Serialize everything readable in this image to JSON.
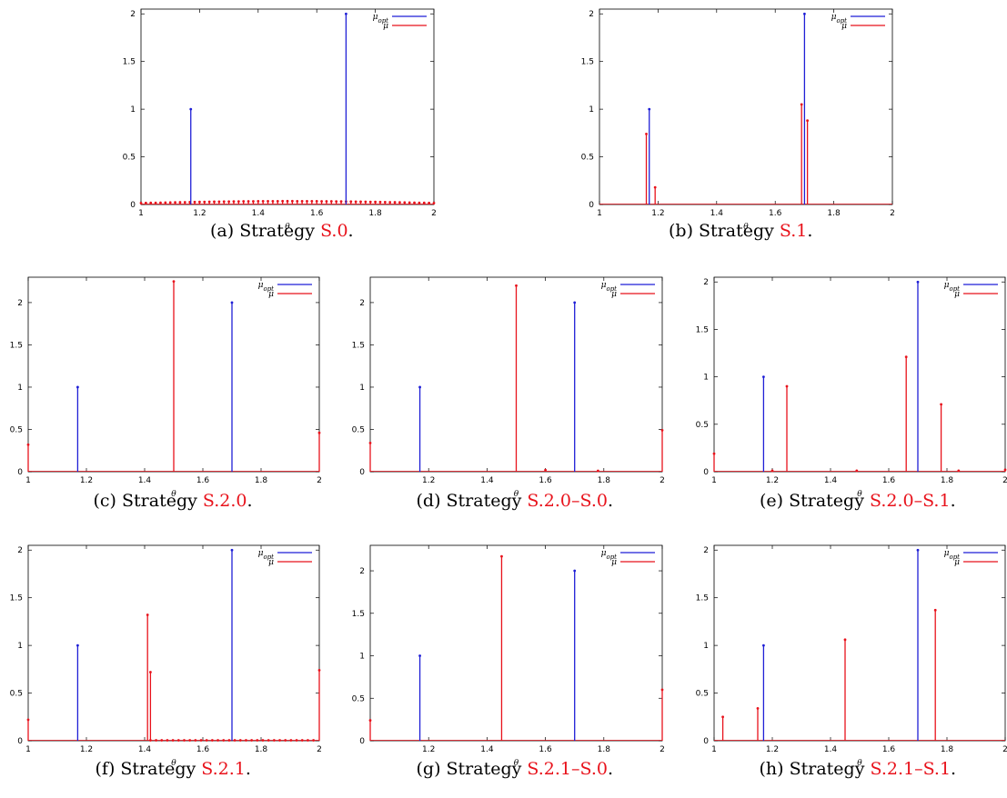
{
  "chart_data": [
    {
      "id": "a",
      "type": "stem",
      "caption_prefix": "(a) Strategy ",
      "strategy": "S.0",
      "caption_suffix": ".",
      "xlabel": "θ",
      "xlim": [
        1,
        2
      ],
      "ylim": [
        0,
        2.05
      ],
      "xticks": [
        1,
        1.2,
        1.4,
        1.6,
        1.8,
        2
      ],
      "yticks": [
        0,
        0.5,
        1,
        1.5,
        2
      ],
      "series": [
        {
          "name": "μopt",
          "name_base": "μ",
          "name_sub": "opt",
          "color": "#1f1fd6",
          "x": [
            1.17,
            1.7
          ],
          "values": [
            1.0,
            2.0
          ]
        },
        {
          "name": "μ",
          "name_base": "μ",
          "name_sub": "",
          "color": "#e8121b",
          "dense": {
            "from": 1.0,
            "to": 2.0,
            "count": 61,
            "min": 0.015,
            "max": 0.035
          },
          "x": [],
          "values": []
        }
      ]
    },
    {
      "id": "b",
      "type": "stem",
      "caption_prefix": "(b) Strategy ",
      "strategy": "S.1",
      "caption_suffix": ".",
      "xlabel": "θ",
      "xlim": [
        1,
        2
      ],
      "ylim": [
        0,
        2.05
      ],
      "xticks": [
        1,
        1.2,
        1.4,
        1.6,
        1.8,
        2
      ],
      "yticks": [
        0,
        0.5,
        1,
        1.5,
        2
      ],
      "series": [
        {
          "name": "μopt",
          "name_base": "μ",
          "name_sub": "opt",
          "color": "#1f1fd6",
          "x": [
            1.17,
            1.7
          ],
          "values": [
            1.0,
            2.0
          ]
        },
        {
          "name": "μ",
          "name_base": "μ",
          "name_sub": "",
          "color": "#e8121b",
          "x": [
            1.16,
            1.19,
            1.69,
            1.71
          ],
          "values": [
            0.74,
            0.18,
            1.05,
            0.88
          ]
        }
      ]
    },
    {
      "id": "c",
      "type": "stem",
      "caption_prefix": "(c) Strategy ",
      "strategy": "S.2.0",
      "caption_suffix": ".",
      "xlabel": "θ",
      "xlim": [
        1,
        2
      ],
      "ylim": [
        0,
        2.3
      ],
      "xticks": [
        1,
        1.2,
        1.4,
        1.6,
        1.8,
        2
      ],
      "yticks": [
        0,
        0.5,
        1,
        1.5,
        2
      ],
      "series": [
        {
          "name": "μopt",
          "name_base": "μ",
          "name_sub": "opt",
          "color": "#1f1fd6",
          "x": [
            1.17,
            1.7
          ],
          "values": [
            1.0,
            2.0
          ]
        },
        {
          "name": "μ",
          "name_base": "μ",
          "name_sub": "",
          "color": "#e8121b",
          "x": [
            1.0,
            1.5,
            2.0
          ],
          "values": [
            0.32,
            2.25,
            0.46
          ]
        }
      ]
    },
    {
      "id": "d",
      "type": "stem",
      "caption_prefix": "(d) Strategy ",
      "strategy": "S.2.0–S.0",
      "caption_suffix": ".",
      "xlabel": "θ",
      "xlim": [
        1,
        2
      ],
      "ylim": [
        0,
        2.3
      ],
      "xticks": [
        1.2,
        1.4,
        1.6,
        1.8,
        2
      ],
      "yticks": [
        0,
        0.5,
        1,
        1.5,
        2
      ],
      "series": [
        {
          "name": "μopt",
          "name_base": "μ",
          "name_sub": "opt",
          "color": "#1f1fd6",
          "x": [
            1.17,
            1.7
          ],
          "values": [
            1.0,
            2.0
          ]
        },
        {
          "name": "μ",
          "name_base": "μ",
          "name_sub": "",
          "color": "#e8121b",
          "x": [
            1.0,
            1.5,
            1.6,
            1.78,
            2.0
          ],
          "values": [
            0.34,
            2.2,
            0.02,
            0.01,
            0.49
          ]
        }
      ]
    },
    {
      "id": "e",
      "type": "stem",
      "caption_prefix": "(e) Strategy ",
      "strategy": "S.2.0–S.1",
      "caption_suffix": ".",
      "xlabel": "θ",
      "xlim": [
        1,
        2
      ],
      "ylim": [
        0,
        2.05
      ],
      "xticks": [
        1,
        1.2,
        1.4,
        1.6,
        1.8,
        2
      ],
      "yticks": [
        0,
        0.5,
        1,
        1.5,
        2
      ],
      "series": [
        {
          "name": "μopt",
          "name_base": "μ",
          "name_sub": "opt",
          "color": "#1f1fd6",
          "x": [
            1.17,
            1.7
          ],
          "values": [
            1.0,
            2.0
          ]
        },
        {
          "name": "μ",
          "name_base": "μ",
          "name_sub": "",
          "color": "#e8121b",
          "x": [
            1.0,
            1.2,
            1.25,
            1.49,
            1.66,
            1.78,
            1.84,
            2.0
          ],
          "values": [
            0.19,
            0.01,
            0.9,
            0.01,
            1.21,
            0.71,
            0.01,
            0.02
          ]
        }
      ]
    },
    {
      "id": "f",
      "type": "stem",
      "caption_prefix": "(f) Strategy ",
      "strategy": "S.2.1",
      "caption_suffix": ".",
      "xlabel": "θ",
      "xlim": [
        1,
        2
      ],
      "ylim": [
        0,
        2.05
      ],
      "xticks": [
        1,
        1.2,
        1.4,
        1.6,
        1.8,
        2
      ],
      "yticks": [
        0,
        0.5,
        1,
        1.5,
        2
      ],
      "series": [
        {
          "name": "μopt",
          "name_base": "μ",
          "name_sub": "opt",
          "color": "#1f1fd6",
          "x": [
            1.17,
            1.7
          ],
          "values": [
            1.0,
            2.0
          ]
        },
        {
          "name": "μ",
          "name_base": "μ",
          "name_sub": "",
          "color": "#e8121b",
          "dense": {
            "from": 1.42,
            "to": 1.98,
            "count": 30,
            "min": 0.005,
            "max": 0.005
          },
          "x": [
            1.0,
            1.41,
            1.42,
            2.0
          ],
          "values": [
            0.22,
            1.32,
            0.72,
            0.74
          ]
        }
      ]
    },
    {
      "id": "g",
      "type": "stem",
      "caption_prefix": "(g) Strategy ",
      "strategy": "S.2.1–S.0",
      "caption_suffix": ".",
      "xlabel": "θ",
      "xlim": [
        1,
        2
      ],
      "ylim": [
        0,
        2.3
      ],
      "xticks": [
        1.2,
        1.4,
        1.6,
        1.8,
        2
      ],
      "yticks": [
        0,
        0.5,
        1,
        1.5,
        2
      ],
      "series": [
        {
          "name": "μopt",
          "name_base": "μ",
          "name_sub": "opt",
          "color": "#1f1fd6",
          "x": [
            1.17,
            1.7
          ],
          "values": [
            1.0,
            2.0
          ]
        },
        {
          "name": "μ",
          "name_base": "μ",
          "name_sub": "",
          "color": "#e8121b",
          "x": [
            1.0,
            1.45,
            2.0
          ],
          "values": [
            0.24,
            2.17,
            0.6
          ]
        }
      ]
    },
    {
      "id": "h",
      "type": "stem",
      "caption_prefix": "(h) Strategy ",
      "strategy": "S.2.1–S.1",
      "caption_suffix": ".",
      "xlabel": "θ",
      "xlim": [
        1,
        2
      ],
      "ylim": [
        0,
        2.05
      ],
      "xticks": [
        1,
        1.2,
        1.4,
        1.6,
        1.8,
        2
      ],
      "yticks": [
        0,
        0.5,
        1,
        1.5,
        2
      ],
      "series": [
        {
          "name": "μopt",
          "name_base": "μ",
          "name_sub": "opt",
          "color": "#1f1fd6",
          "x": [
            1.17,
            1.7
          ],
          "values": [
            1.0,
            2.0
          ]
        },
        {
          "name": "μ",
          "name_base": "μ",
          "name_sub": "",
          "color": "#e8121b",
          "x": [
            1.03,
            1.15,
            1.45,
            1.76
          ],
          "values": [
            0.25,
            0.34,
            1.06,
            1.37
          ]
        }
      ]
    }
  ]
}
